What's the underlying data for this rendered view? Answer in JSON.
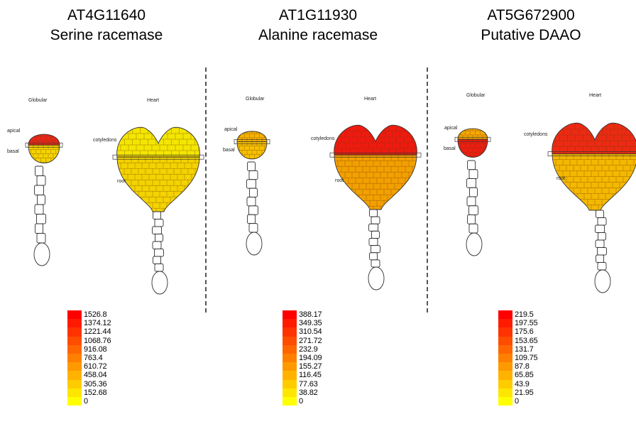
{
  "panels": [
    {
      "gene_id": "AT4G11640",
      "protein": "Serine racemase",
      "stages": {
        "globular": "Globular",
        "heart": "Heart"
      },
      "tissues": {
        "apical": "apical",
        "basal": "basal",
        "cotyledons": "cotyledons",
        "root": "root"
      },
      "colors": {
        "globular_apical": "#e8261a",
        "globular_basal": "#f3d300",
        "heart_cotyledons": "#f3e600",
        "heart_root": "#f3d300"
      },
      "legend": [
        "1526.8",
        "1374.12",
        "1221.44",
        "1068.76",
        "916.08",
        "763.4",
        "610.72",
        "458.04",
        "305.36",
        "152.68",
        "0"
      ]
    },
    {
      "gene_id": "AT1G11930",
      "protein": "Alanine racemase",
      "stages": {
        "globular": "Globular",
        "heart": "Heart"
      },
      "tissues": {
        "apical": "apical",
        "basal": "basal",
        "cotyledons": "cotyledons",
        "root": "root"
      },
      "colors": {
        "globular_apical": "#f5b200",
        "globular_basal": "#f5c000",
        "heart_cotyledons": "#ee1a10",
        "heart_root": "#f2a000"
      },
      "legend": [
        "388.17",
        "349.35",
        "310.54",
        "271.72",
        "232.9",
        "194.09",
        "155.27",
        "116.45",
        "77.63",
        "38.82",
        "0"
      ]
    },
    {
      "gene_id": "AT5G672900",
      "protein": "Putative DAAO",
      "stages": {
        "globular": "Globular",
        "heart": "Heart"
      },
      "tissues": {
        "apical": "apical",
        "basal": "basal",
        "cotyledons": "cotyledons",
        "root": "root"
      },
      "colors": {
        "globular_apical": "#f5a800",
        "globular_basal": "#ec1d12",
        "heart_cotyledons": "#ec2a14",
        "heart_root": "#f3b800"
      },
      "legend": [
        "219.5",
        "197.55",
        "175.6",
        "153.65",
        "131.7",
        "109.75",
        "87.8",
        "65.85",
        "43.9",
        "21.95",
        "0"
      ]
    }
  ],
  "legend_colors": [
    "#ff0000",
    "#ff1a00",
    "#ff3300",
    "#ff4d00",
    "#ff6600",
    "#ff8000",
    "#ff9900",
    "#ffb300",
    "#ffcc00",
    "#ffe600",
    "#ffff00"
  ]
}
